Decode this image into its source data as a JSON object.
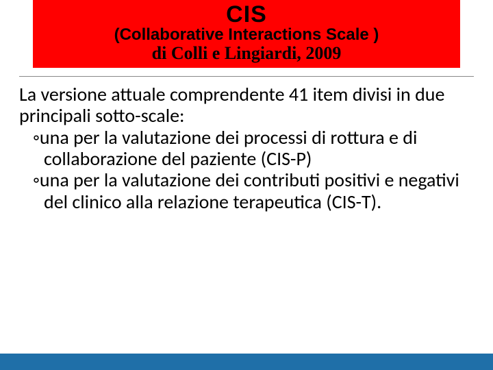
{
  "title_box": {
    "main": "CIS",
    "subtitle": "(Collaborative Interactions Scale )",
    "authors": "di Colli e Lingiardi, 2009",
    "background_color": "#ff0000",
    "text_color": "#000000",
    "main_fontsize": 34,
    "sub_fontsize": 24,
    "authors_fontsize": 26
  },
  "body": {
    "intro": "La versione attuale comprendente 41 item divisi in due principali sotto-scale:",
    "bullets": [
      "una per la valutazione dei processi di rottura e di collaborazione del paziente (CIS-P)",
      "una per la valutazione dei contributi positivi e negativi del clinico alla relazione terapeutica (CIS-T)."
    ],
    "bullet_marker": "◦",
    "fontsize": 28,
    "text_color": "#000000"
  },
  "divider_color": "#888888",
  "bottom_bar_color": "#1f6fa8",
  "page_background": "#ffffff"
}
